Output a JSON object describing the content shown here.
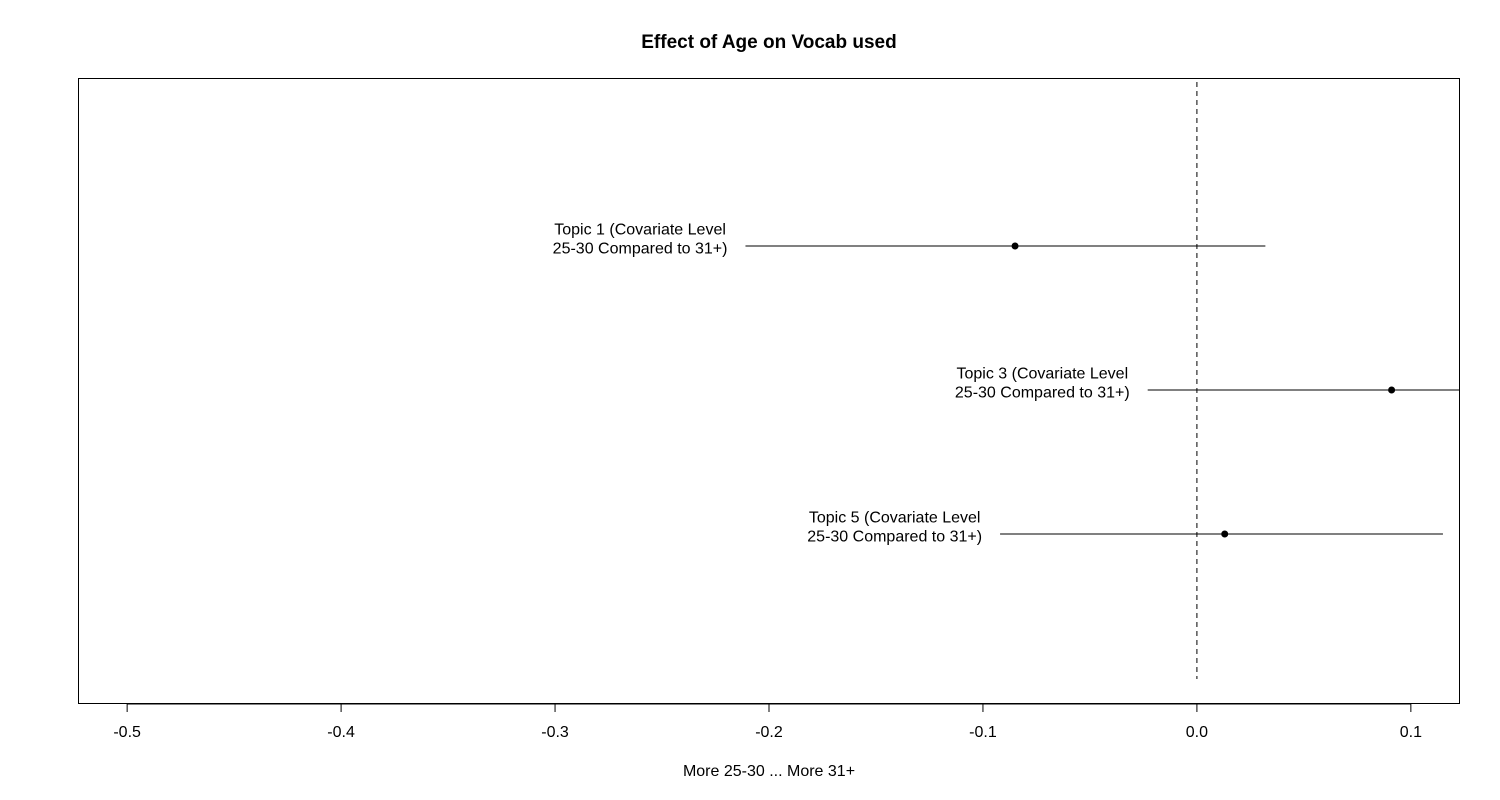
{
  "chart_data": {
    "type": "scatter",
    "title": "Effect of Age on Vocab used",
    "xlabel": "More 25-30 ... More 31+",
    "ylabel": "",
    "xlim": [
      -0.5225,
      0.1225
    ],
    "xticks": [
      -0.5,
      -0.4,
      -0.3,
      -0.2,
      -0.1,
      0.0,
      0.1
    ],
    "xtick_labels": [
      "-0.5",
      "-0.4",
      "-0.3",
      "-0.2",
      "-0.1",
      "0.0",
      "0.1"
    ],
    "reference_line": {
      "x": 0.0,
      "style": "dashed"
    },
    "grid": false,
    "legend": "none",
    "points": [
      {
        "label_lines": [
          "Topic 1 (Covariate Level",
          "25-30 Compared to 31+)"
        ],
        "estimate": -0.085,
        "ci": [
          -0.211,
          0.032
        ]
      },
      {
        "label_lines": [
          "Topic 3 (Covariate Level",
          "25-30 Compared to 31+)"
        ],
        "estimate": 0.091,
        "ci": [
          -0.023,
          0.125
        ]
      },
      {
        "label_lines": [
          "Topic 5 (Covariate Level",
          "25-30 Compared to 31+)"
        ],
        "estimate": 0.013,
        "ci": [
          -0.092,
          0.115
        ]
      }
    ]
  }
}
